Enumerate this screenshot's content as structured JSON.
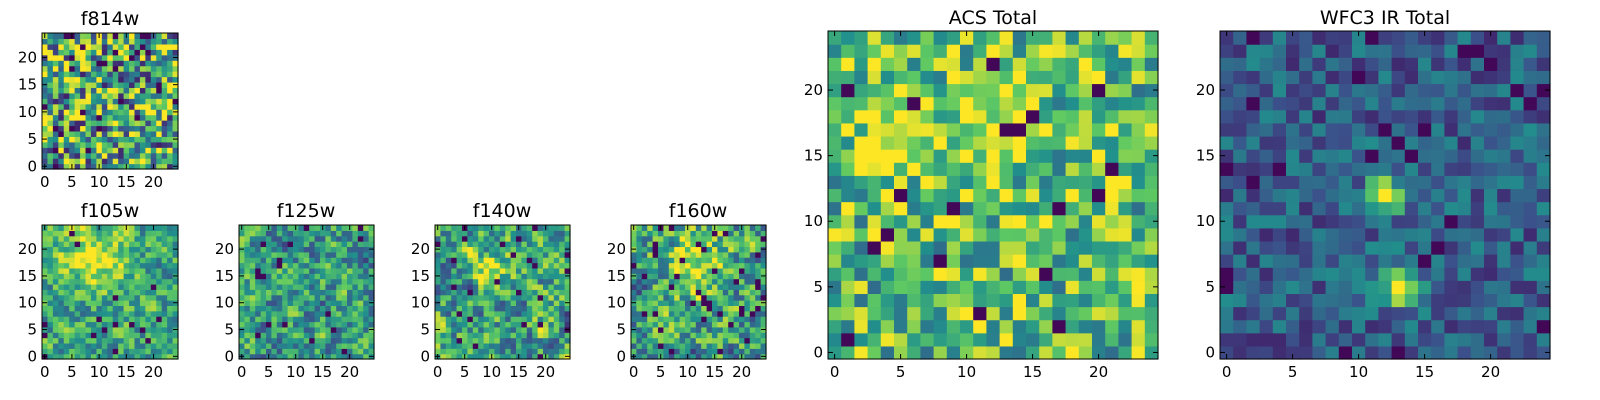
{
  "figure": {
    "colormap": [
      "#440154",
      "#3b528b",
      "#21918c",
      "#5ec962",
      "#fde725"
    ]
  },
  "chart_data": [
    {
      "type": "heatmap",
      "title": "f814w",
      "grid": [
        25,
        25
      ],
      "xlim": [
        0,
        24
      ],
      "ylim": [
        0,
        24
      ],
      "xticks": [
        0,
        5,
        10,
        15,
        20
      ],
      "yticks": [
        0,
        5,
        10,
        15,
        20
      ],
      "tick_labels": {
        "x": [
          "0",
          "5",
          "10",
          "15",
          "20"
        ],
        "y": [
          "0",
          "5",
          "10",
          "15",
          "20"
        ]
      },
      "pattern": {
        "seed": 11,
        "base": 0.6,
        "noise": 0.5,
        "dark_frac": 0.05,
        "smooth": 0,
        "blobs": []
      }
    },
    {
      "type": "heatmap",
      "title": "f105w",
      "grid": [
        25,
        25
      ],
      "xlim": [
        0,
        24
      ],
      "ylim": [
        0,
        24
      ],
      "xticks": [
        0,
        5,
        10,
        15,
        20
      ],
      "yticks": [
        0,
        5,
        10,
        15,
        20
      ],
      "tick_labels": {
        "x": [
          "0",
          "5",
          "10",
          "15",
          "20"
        ],
        "y": [
          "0",
          "5",
          "10",
          "15",
          "20"
        ]
      },
      "pattern": {
        "seed": 23,
        "base": 0.6,
        "noise": 0.45,
        "dark_frac": 0.02,
        "smooth": 1,
        "blobs": [
          {
            "x": 9,
            "y": 18,
            "r": 4,
            "amp": 0.4
          }
        ]
      }
    },
    {
      "type": "heatmap",
      "title": "f125w",
      "grid": [
        25,
        25
      ],
      "xlim": [
        0,
        24
      ],
      "ylim": [
        0,
        24
      ],
      "xticks": [
        0,
        5,
        10,
        15,
        20
      ],
      "yticks": [
        0,
        5,
        10,
        15,
        20
      ],
      "tick_labels": {
        "x": [
          "0",
          "5",
          "10",
          "15",
          "20"
        ],
        "y": [
          "0",
          "5",
          "10",
          "15",
          "20"
        ]
      },
      "pattern": {
        "seed": 37,
        "base": 0.55,
        "noise": 0.5,
        "dark_frac": 0.03,
        "smooth": 1,
        "blobs": []
      }
    },
    {
      "type": "heatmap",
      "title": "f140w",
      "grid": [
        25,
        25
      ],
      "xlim": [
        0,
        24
      ],
      "ylim": [
        0,
        24
      ],
      "xticks": [
        0,
        5,
        10,
        15,
        20
      ],
      "yticks": [
        0,
        5,
        10,
        15,
        20
      ],
      "tick_labels": {
        "x": [
          "0",
          "5",
          "10",
          "15",
          "20"
        ],
        "y": [
          "0",
          "5",
          "10",
          "15",
          "20"
        ]
      },
      "pattern": {
        "seed": 51,
        "base": 0.58,
        "noise": 0.55,
        "dark_frac": 0.04,
        "smooth": 1,
        "blobs": [
          {
            "x": 11,
            "y": 17,
            "r": 3,
            "amp": 0.25
          }
        ]
      }
    },
    {
      "type": "heatmap",
      "title": "f160w",
      "grid": [
        25,
        25
      ],
      "xlim": [
        0,
        24
      ],
      "ylim": [
        0,
        24
      ],
      "xticks": [
        0,
        5,
        10,
        15,
        20
      ],
      "yticks": [
        0,
        5,
        10,
        15,
        20
      ],
      "tick_labels": {
        "x": [
          "0",
          "5",
          "10",
          "15",
          "20"
        ],
        "y": [
          "0",
          "5",
          "10",
          "15",
          "20"
        ]
      },
      "pattern": {
        "seed": 67,
        "base": 0.58,
        "noise": 0.55,
        "dark_frac": 0.05,
        "smooth": 1,
        "blobs": [
          {
            "x": 11,
            "y": 17,
            "r": 4,
            "amp": 0.35
          }
        ]
      }
    },
    {
      "type": "heatmap",
      "title": "ACS Total",
      "grid": [
        25,
        25
      ],
      "xlim": [
        0,
        24
      ],
      "ylim": [
        0,
        24
      ],
      "xticks": [
        0,
        5,
        10,
        15,
        20
      ],
      "yticks": [
        0,
        5,
        10,
        15,
        20
      ],
      "tick_labels": {
        "x": [
          "0",
          "5",
          "10",
          "15",
          "20"
        ],
        "y": [
          "0",
          "5",
          "10",
          "15",
          "20"
        ]
      },
      "pattern": {
        "seed": 79,
        "base": 0.7,
        "noise": 0.35,
        "dark_frac": 0.04,
        "smooth": 0,
        "blobs": [
          {
            "x": 4,
            "y": 16,
            "r": 2,
            "amp": 0.3
          },
          {
            "x": 11,
            "y": 17,
            "r": 3,
            "amp": 0.2
          }
        ]
      }
    },
    {
      "type": "heatmap",
      "title": "WFC3 IR Total",
      "grid": [
        25,
        25
      ],
      "xlim": [
        0,
        24
      ],
      "ylim": [
        0,
        24
      ],
      "xticks": [
        0,
        5,
        10,
        15,
        20
      ],
      "yticks": [
        0,
        5,
        10,
        15,
        20
      ],
      "tick_labels": {
        "x": [
          "0",
          "5",
          "10",
          "15",
          "20"
        ],
        "y": [
          "0",
          "5",
          "10",
          "15",
          "20"
        ]
      },
      "pattern": {
        "seed": 97,
        "base": 0.3,
        "noise": 0.18,
        "dark_frac": 0.05,
        "smooth": 0,
        "blobs": [
          {
            "x": 12,
            "y": 12,
            "r": 1,
            "amp": 0.7
          },
          {
            "x": 13,
            "y": 5,
            "r": 1,
            "amp": 0.7
          }
        ]
      }
    }
  ]
}
